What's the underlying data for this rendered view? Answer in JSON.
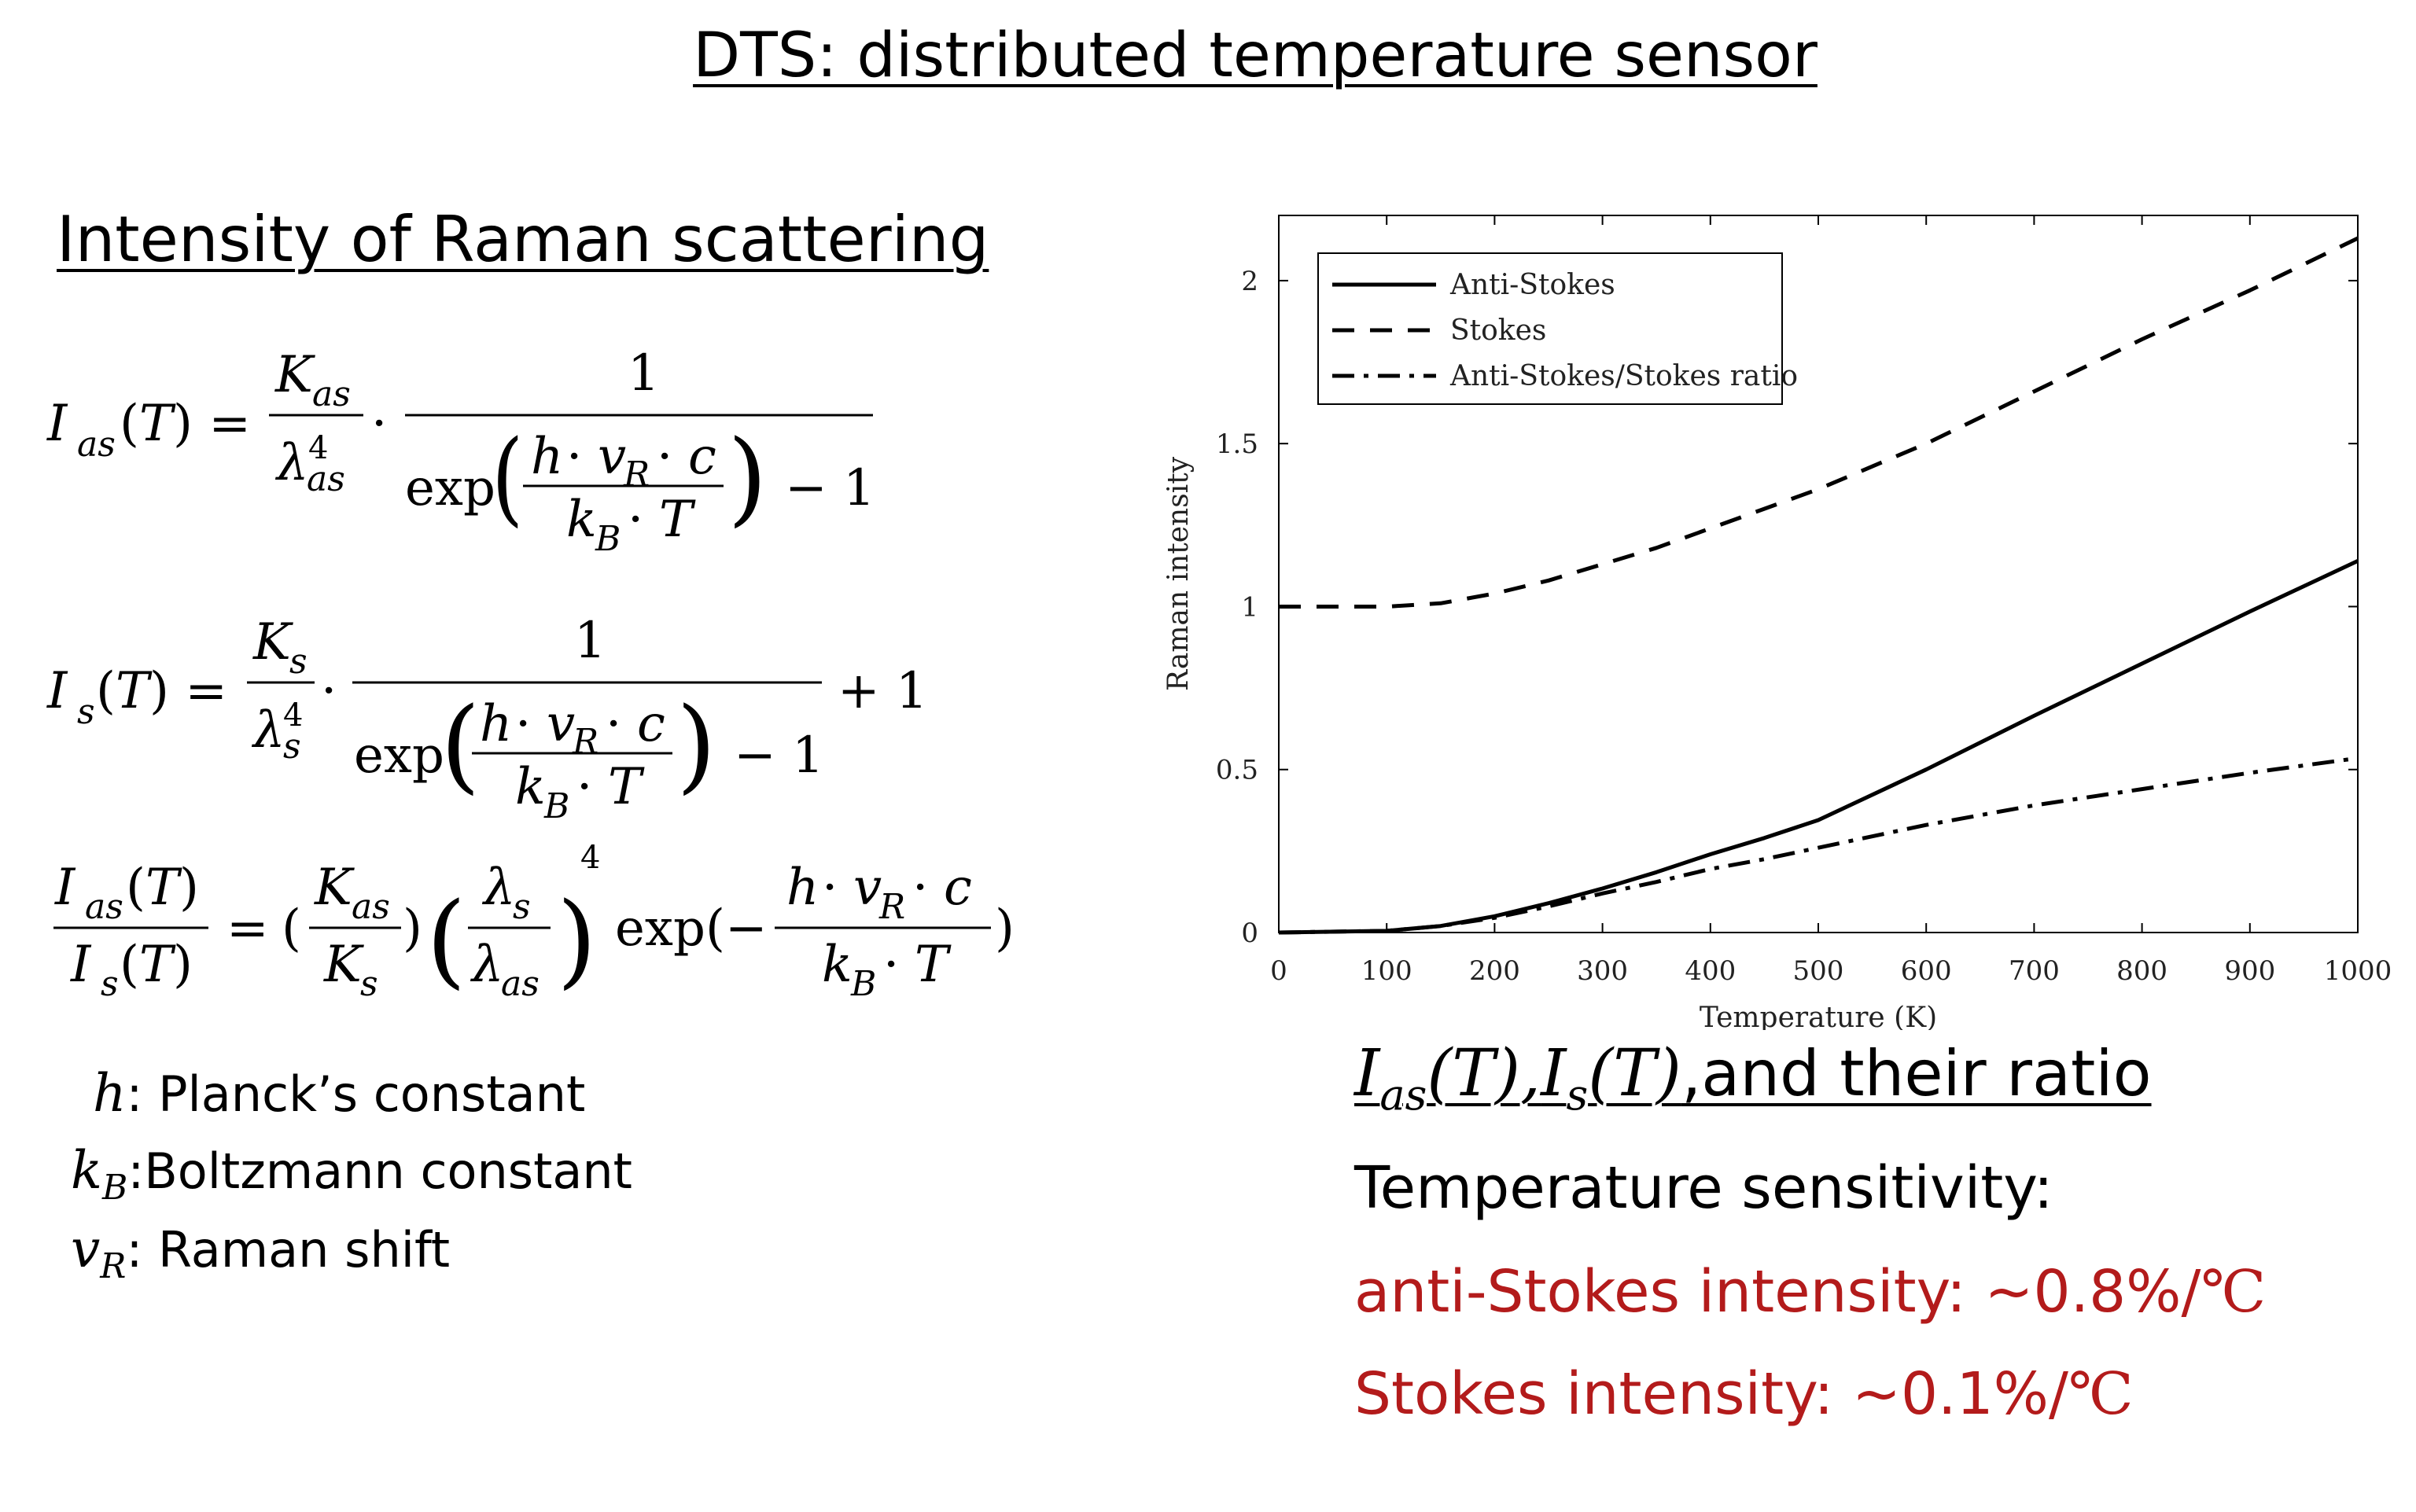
{
  "title": "DTS: distributed temperature sensor",
  "section_heading": "Intensity of Raman scattering",
  "symbols": [
    {
      "symbol": "h",
      "description": ": Planck’s constant"
    },
    {
      "symbol": "k",
      "sub": "B",
      "description": ":Boltzmann constant"
    },
    {
      "symbol": "v",
      "sub": "R",
      "description": ": Raman shift"
    }
  ],
  "caption": {
    "sym1": "I",
    "sub1": "as",
    "arg1": "(T),",
    "sym2": "I",
    "sub2": "s",
    "arg2": "(T)",
    "text": ",and their ratio"
  },
  "sensitivity": {
    "title": "Temperature sensitivity:",
    "anti_stokes": "anti-Stokes intensity: ~0.8%/",
    "stokes": "Stokes intensity: ~0.1%/",
    "unit": "℃",
    "color": "#b31b1b"
  },
  "chart_data": {
    "type": "line",
    "xlabel": "Temperature (K)",
    "ylabel": "Raman intensity",
    "xlim": [
      0,
      1000
    ],
    "ylim": [
      0,
      2.2
    ],
    "xticks": [
      0,
      100,
      200,
      300,
      400,
      500,
      600,
      700,
      800,
      900,
      1000
    ],
    "yticks": [
      0,
      0.5,
      1,
      1.5,
      2
    ],
    "ytick_labels": [
      "0",
      "0.5",
      "1",
      "1.5",
      "2"
    ],
    "legend_position": "top-left",
    "x": [
      0,
      100,
      150,
      200,
      250,
      300,
      350,
      400,
      450,
      500,
      600,
      700,
      800,
      900,
      1000
    ],
    "series": [
      {
        "name": "Anti-Stokes",
        "style": "solid",
        "values": [
          0,
          0.005,
          0.02,
          0.05,
          0.09,
          0.135,
          0.185,
          0.24,
          0.29,
          0.345,
          0.5,
          0.665,
          0.825,
          0.985,
          1.14
        ]
      },
      {
        "name": "Stokes",
        "style": "dashed",
        "values": [
          1.0,
          1.0,
          1.01,
          1.04,
          1.08,
          1.13,
          1.18,
          1.24,
          1.3,
          1.36,
          1.5,
          1.66,
          1.82,
          1.97,
          2.13
        ]
      },
      {
        "name": "Anti-Stokes/Stokes ratio",
        "style": "dashdot",
        "values": [
          0,
          0.005,
          0.02,
          0.045,
          0.08,
          0.12,
          0.155,
          0.195,
          0.225,
          0.26,
          0.33,
          0.39,
          0.44,
          0.49,
          0.535
        ]
      }
    ]
  }
}
